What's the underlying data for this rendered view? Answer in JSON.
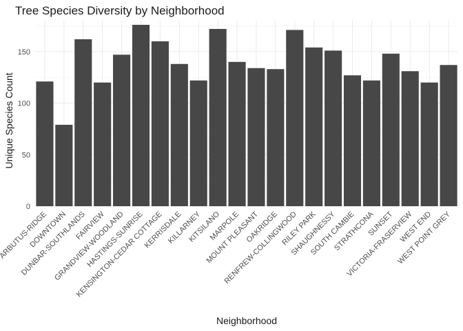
{
  "chart_data": {
    "type": "bar",
    "title": "Tree Species Diversity by Neighborhood",
    "xlabel": "Neighborhood",
    "ylabel": "Unique Species Count",
    "ylim": [
      0,
      180
    ],
    "yticks": [
      0,
      50,
      100,
      150
    ],
    "grid": true,
    "bar_color": "#474747",
    "categories": [
      "ARBUTUS-RIDGE",
      "DOWNTOWN",
      "DUNBAR-SOUTHLANDS",
      "FAIRVIEW",
      "GRANDVIEW-WOODLAND",
      "HASTINGS-SUNRISE",
      "KENSINGTON-CEDAR COTTAGE",
      "KERRISDALE",
      "KILLARNEY",
      "KITSILANO",
      "MARPOLE",
      "MOUNT PLEASANT",
      "OAKRIDGE",
      "RENFREW-COLLINGWOOD",
      "RILEY PARK",
      "SHAUGHNESSY",
      "SOUTH CAMBIE",
      "STRATHCONA",
      "SUNSET",
      "VICTORIA-FRASERVIEW",
      "WEST END",
      "WEST POINT GREY"
    ],
    "values": [
      121,
      79,
      162,
      120,
      147,
      176,
      160,
      138,
      122,
      172,
      140,
      134,
      133,
      171,
      154,
      151,
      127,
      122,
      148,
      131,
      120,
      137
    ]
  }
}
